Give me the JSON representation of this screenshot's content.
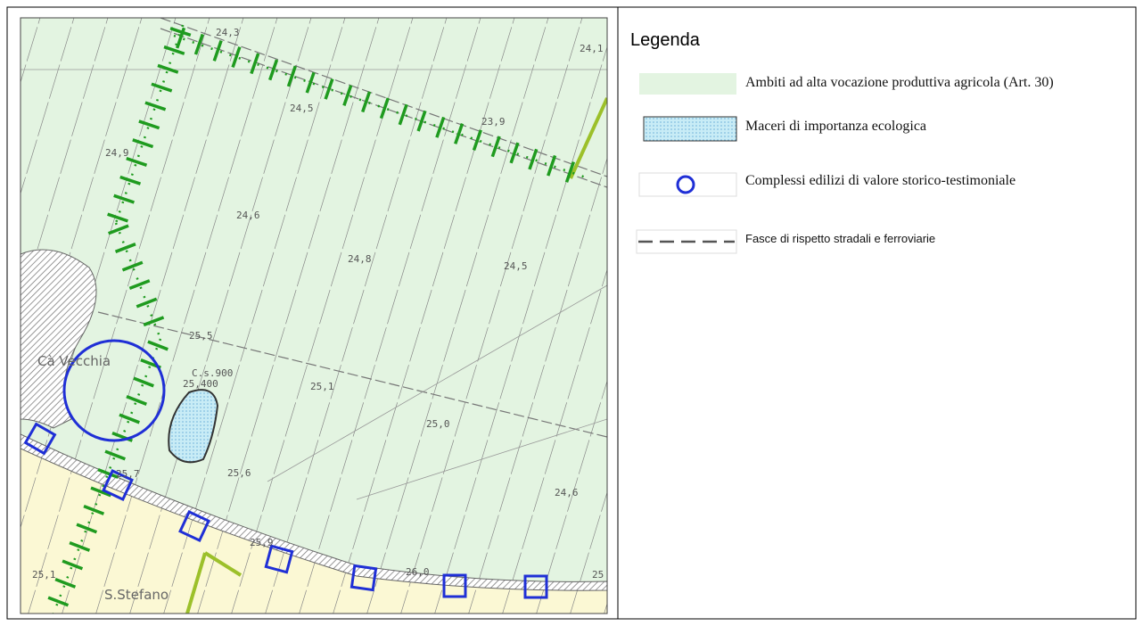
{
  "legend": {
    "title": "Legenda",
    "items": [
      "Ambiti ad alta vocazione produttiva agricola (Art. 30)",
      "Maceri di importanza ecologica",
      "Complessi edilizi di valore storico-testimoniale",
      "Fasce di rispetto stradali e ferroviarie"
    ]
  },
  "map": {
    "labels": [
      "24,3",
      "24,1",
      "24,5",
      "23,9",
      "24,9",
      "24,6",
      "24,8",
      "24,5",
      "25,5",
      "Cà Vecchia",
      "C.s.900",
      "25,400",
      "25,1",
      "25,0",
      "25,7",
      "25,6",
      "24,6",
      "25,9",
      "26,0",
      "25,1",
      "S.Stefano",
      "25"
    ]
  }
}
